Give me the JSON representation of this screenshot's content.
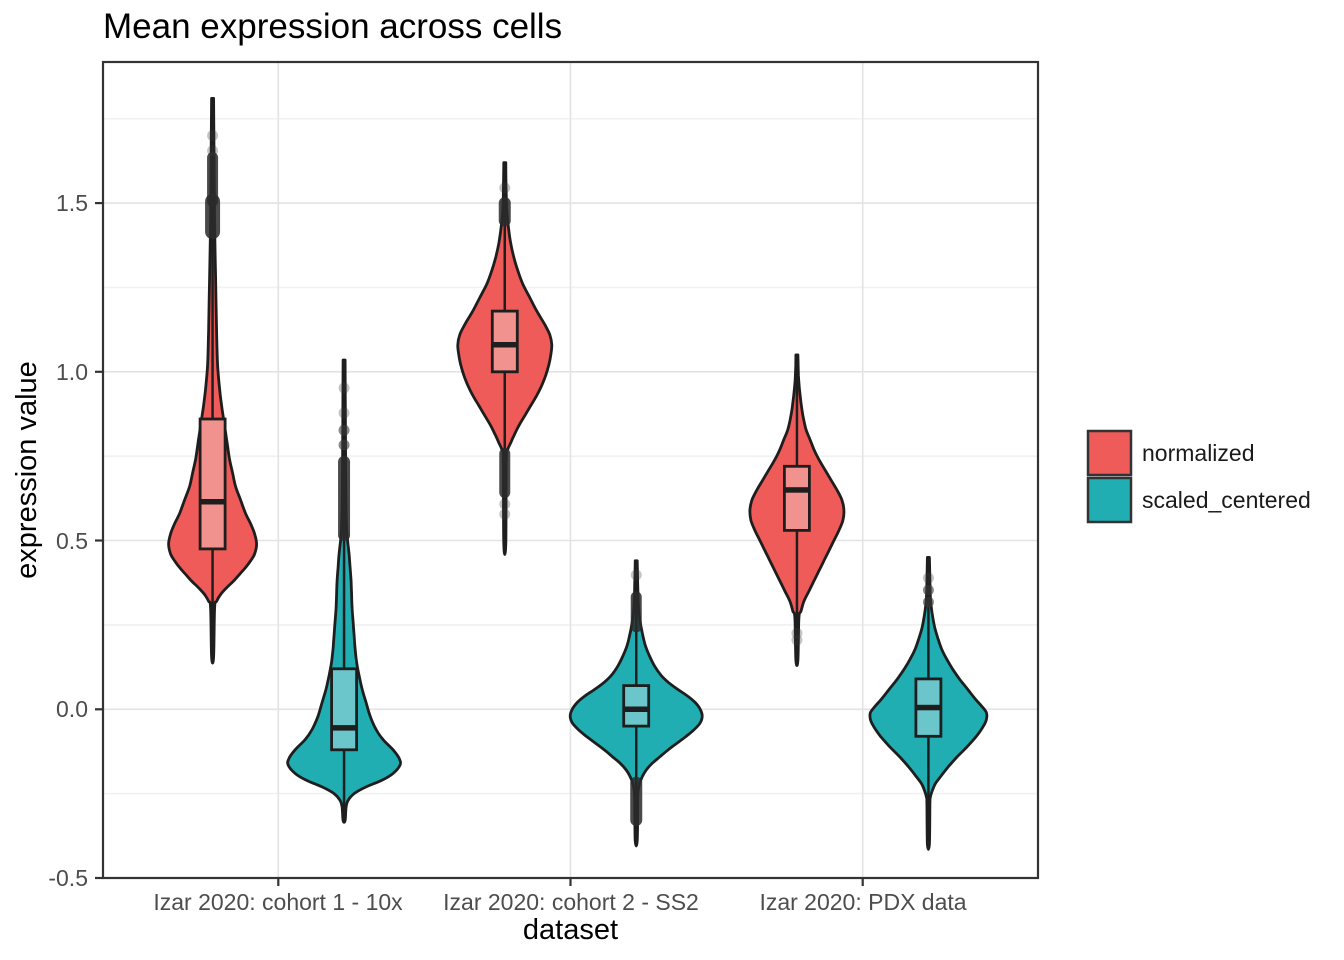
{
  "title": "Mean expression across cells",
  "axes": {
    "x": {
      "title": "dataset",
      "tick_labels": [
        "Izar 2020: cohort 1 - 10x",
        "Izar 2020: cohort 2 - SS2",
        "Izar 2020: PDX data"
      ]
    },
    "y": {
      "title": "expression value",
      "ticks": [
        {
          "label": "1.5",
          "value": 1.5
        },
        {
          "label": "1.0",
          "value": 1.0
        },
        {
          "label": "0.5",
          "value": 0.5
        },
        {
          "label": "0.0",
          "value": 0.0
        },
        {
          "label": "-0.5",
          "value": -0.5
        }
      ],
      "minor_tick_values": [
        1.75,
        1.25,
        0.75,
        0.25,
        -0.25
      ],
      "range": [
        -0.5,
        1.918
      ]
    }
  },
  "legend": {
    "items": [
      {
        "label": "normalized",
        "color": "#EF5B58"
      },
      {
        "label": "scaled_centered",
        "color": "#21AEB3"
      }
    ]
  },
  "style": {
    "outline": "#1e1e1e",
    "panel_border": "#333333",
    "grid_major": "#e3e3e3",
    "grid_minor": "#f1f1f1",
    "tick_mark": "#333333",
    "outlier_color": "#3a3a3a",
    "normalized_fill": "#EF5B58",
    "normalized_box_fill": "#F2928E",
    "scaled_fill": "#21AEB3",
    "scaled_box_fill": "#6AC6CA"
  },
  "chart_data": {
    "type": "violin",
    "title": "Mean expression across cells",
    "xlabel": "dataset",
    "ylabel": "expression value",
    "categories": [
      "Izar 2020: cohort 1 - 10x",
      "Izar 2020: cohort 2 - SS2",
      "Izar 2020: PDX data"
    ],
    "y_ticks": [
      -0.5,
      0.0,
      0.5,
      1.0,
      1.5
    ],
    "ylim": [
      -0.5,
      1.918
    ],
    "grid": true,
    "legend_position": "right",
    "series": [
      {
        "name": "normalized",
        "violins": [
          {
            "category": "Izar 2020: cohort 1 - 10x",
            "min": 0.155,
            "max": 1.81,
            "q1": 0.475,
            "median": 0.615,
            "q3": 0.86,
            "profile": [
              [
                1.81,
                1
              ],
              [
                1.62,
                1.5
              ],
              [
                1.44,
                2
              ],
              [
                1.28,
                3
              ],
              [
                1.12,
                4
              ],
              [
                1.02,
                5
              ],
              [
                0.95,
                7
              ],
              [
                0.9,
                9
              ],
              [
                0.86,
                11
              ],
              [
                0.82,
                13
              ],
              [
                0.78,
                15
              ],
              [
                0.74,
                17
              ],
              [
                0.7,
                20
              ],
              [
                0.66,
                23
              ],
              [
                0.62,
                28
              ],
              [
                0.58,
                33
              ],
              [
                0.55,
                38
              ],
              [
                0.52,
                42
              ],
              [
                0.49,
                44
              ],
              [
                0.46,
                42
              ],
              [
                0.44,
                38
              ],
              [
                0.42,
                33
              ],
              [
                0.4,
                27
              ],
              [
                0.38,
                21
              ],
              [
                0.36,
                14
              ],
              [
                0.34,
                8
              ],
              [
                0.32,
                4
              ],
              [
                0.3,
                2
              ],
              [
                0.155,
                1
              ]
            ],
            "outliers_faint": [
              1.7,
              1.655
            ],
            "outliers_dark": [],
            "outlier_clusters": [
              [
                1.505,
                1.635,
                11
              ],
              [
                1.415,
                1.505,
                15
              ]
            ]
          },
          {
            "category": "Izar 2020: cohort 2 - SS2",
            "min": 0.49,
            "max": 1.62,
            "q1": 1.0,
            "median": 1.08,
            "q3": 1.18,
            "profile": [
              [
                1.62,
                1
              ],
              [
                1.52,
                1.5
              ],
              [
                1.46,
                2.5
              ],
              [
                1.42,
                4
              ],
              [
                1.38,
                6
              ],
              [
                1.34,
                9
              ],
              [
                1.3,
                13
              ],
              [
                1.26,
                18
              ],
              [
                1.22,
                25
              ],
              [
                1.18,
                32
              ],
              [
                1.14,
                40
              ],
              [
                1.11,
                45
              ],
              [
                1.08,
                47
              ],
              [
                1.05,
                46
              ],
              [
                1.02,
                44
              ],
              [
                0.99,
                41
              ],
              [
                0.96,
                37
              ],
              [
                0.93,
                32
              ],
              [
                0.9,
                26
              ],
              [
                0.87,
                20
              ],
              [
                0.84,
                14
              ],
              [
                0.81,
                9
              ],
              [
                0.79,
                6
              ],
              [
                0.77,
                3
              ],
              [
                0.74,
                1.5
              ],
              [
                0.49,
                1
              ]
            ],
            "outliers_faint": [
              1.545,
              0.608,
              0.578
            ],
            "outliers_dark": [],
            "outlier_clusters": [
              [
                1.448,
                1.5,
                12
              ],
              [
                0.642,
                0.758,
                11
              ]
            ]
          },
          {
            "category": "Izar 2020: PDX data",
            "min": 0.145,
            "max": 1.05,
            "q1": 0.53,
            "median": 0.65,
            "q3": 0.72,
            "profile": [
              [
                1.05,
                1
              ],
              [
                0.99,
                1.5
              ],
              [
                0.95,
                2.5
              ],
              [
                0.91,
                4
              ],
              [
                0.87,
                6
              ],
              [
                0.83,
                9
              ],
              [
                0.8,
                13
              ],
              [
                0.77,
                17
              ],
              [
                0.74,
                22
              ],
              [
                0.71,
                28
              ],
              [
                0.68,
                34
              ],
              [
                0.65,
                40
              ],
              [
                0.62,
                45
              ],
              [
                0.59,
                47
              ],
              [
                0.56,
                46
              ],
              [
                0.53,
                42
              ],
              [
                0.5,
                37
              ],
              [
                0.47,
                32
              ],
              [
                0.44,
                27
              ],
              [
                0.41,
                22
              ],
              [
                0.38,
                17
              ],
              [
                0.35,
                12
              ],
              [
                0.32,
                7
              ],
              [
                0.29,
                4
              ],
              [
                0.27,
                2
              ],
              [
                0.145,
                1
              ]
            ],
            "outliers_faint": [
              0.225,
              0.205
            ],
            "outliers_dark": [],
            "outlier_clusters": []
          }
        ]
      },
      {
        "name": "scaled_centered",
        "violins": [
          {
            "category": "Izar 2020: cohort 1 - 10x",
            "min": -0.33,
            "max": 1.035,
            "q1": -0.12,
            "median": -0.055,
            "q3": 0.12,
            "profile": [
              [
                1.035,
                1
              ],
              [
                0.85,
                1.3
              ],
              [
                0.7,
                1.6
              ],
              [
                0.6,
                2
              ],
              [
                0.54,
                2.5
              ],
              [
                0.5,
                3.5
              ],
              [
                0.46,
                5
              ],
              [
                0.42,
                6
              ],
              [
                0.38,
                7
              ],
              [
                0.34,
                7.5
              ],
              [
                0.3,
                8
              ],
              [
                0.26,
                9
              ],
              [
                0.22,
                10
              ],
              [
                0.18,
                11
              ],
              [
                0.14,
                12.5
              ],
              [
                0.1,
                15
              ],
              [
                0.06,
                18
              ],
              [
                0.02,
                22
              ],
              [
                -0.02,
                26
              ],
              [
                -0.06,
                32
              ],
              [
                -0.09,
                39
              ],
              [
                -0.12,
                49
              ],
              [
                -0.145,
                55
              ],
              [
                -0.165,
                56
              ],
              [
                -0.19,
                49
              ],
              [
                -0.21,
                38
              ],
              [
                -0.23,
                22
              ],
              [
                -0.25,
                10
              ],
              [
                -0.27,
                4
              ],
              [
                -0.29,
                2
              ],
              [
                -0.33,
                1
              ]
            ],
            "outliers_faint": [
              0.952,
              0.878
            ],
            "outliers_dark": [
              0.827,
              0.783
            ],
            "outlier_clusters": [
              [
                0.516,
                0.733,
                12
              ]
            ]
          },
          {
            "category": "Izar 2020: cohort 2 - SS2",
            "min": -0.39,
            "max": 0.44,
            "q1": -0.05,
            "median": 0.0,
            "q3": 0.07,
            "profile": [
              [
                0.44,
                1
              ],
              [
                0.37,
                1.5
              ],
              [
                0.32,
                2
              ],
              [
                0.28,
                3
              ],
              [
                0.25,
                4.5
              ],
              [
                0.22,
                6.5
              ],
              [
                0.19,
                9
              ],
              [
                0.16,
                13
              ],
              [
                0.13,
                18
              ],
              [
                0.1,
                25
              ],
              [
                0.08,
                32
              ],
              [
                0.06,
                41
              ],
              [
                0.04,
                51
              ],
              [
                0.02,
                59
              ],
              [
                0.0,
                64
              ],
              [
                -0.02,
                66
              ],
              [
                -0.04,
                64
              ],
              [
                -0.06,
                58
              ],
              [
                -0.08,
                50
              ],
              [
                -0.1,
                41
              ],
              [
                -0.12,
                32
              ],
              [
                -0.14,
                24
              ],
              [
                -0.16,
                16
              ],
              [
                -0.18,
                10
              ],
              [
                -0.2,
                6
              ],
              [
                -0.22,
                3.5
              ],
              [
                -0.24,
                2
              ],
              [
                -0.27,
                1.5
              ],
              [
                -0.39,
                1
              ]
            ],
            "outliers_faint": [
              0.398
            ],
            "outliers_dark": [],
            "outlier_clusters": [
              [
                0.244,
                0.333,
                11
              ],
              [
                -0.328,
                -0.218,
                12
              ]
            ]
          },
          {
            "category": "Izar 2020: PDX data",
            "min": -0.4,
            "max": 0.45,
            "q1": -0.08,
            "median": 0.005,
            "q3": 0.09,
            "profile": [
              [
                0.45,
                1
              ],
              [
                0.38,
                1.5
              ],
              [
                0.33,
                2
              ],
              [
                0.3,
                3
              ],
              [
                0.27,
                4.5
              ],
              [
                0.24,
                6.5
              ],
              [
                0.21,
                9.5
              ],
              [
                0.18,
                13
              ],
              [
                0.15,
                18
              ],
              [
                0.12,
                24
              ],
              [
                0.09,
                31
              ],
              [
                0.06,
                39
              ],
              [
                0.03,
                47
              ],
              [
                0.01,
                53
              ],
              [
                -0.01,
                58
              ],
              [
                -0.03,
                58
              ],
              [
                -0.05,
                55
              ],
              [
                -0.08,
                48
              ],
              [
                -0.11,
                39
              ],
              [
                -0.14,
                29
              ],
              [
                -0.17,
                20
              ],
              [
                -0.2,
                12
              ],
              [
                -0.22,
                7
              ],
              [
                -0.24,
                4
              ],
              [
                -0.26,
                2
              ],
              [
                -0.28,
                1.5
              ],
              [
                -0.4,
                1
              ]
            ],
            "outliers_faint": [
              0.389
            ],
            "outliers_dark": [
              0.353,
              0.318
            ],
            "outlier_clusters": []
          }
        ]
      }
    ]
  }
}
